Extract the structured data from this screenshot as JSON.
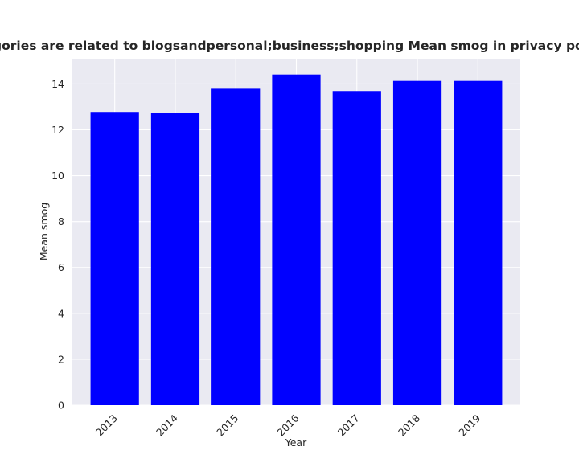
{
  "chart_data": {
    "type": "bar",
    "title": "categories are related to blogsandpersonal;business;shopping Mean smog in privacy policies",
    "xlabel": "Year",
    "ylabel": "Mean smog",
    "categories": [
      "2013",
      "2014",
      "2015",
      "2016",
      "2017",
      "2018",
      "2019"
    ],
    "values": [
      12.78,
      12.74,
      13.79,
      14.41,
      13.69,
      14.13,
      14.13
    ],
    "ylim": [
      0,
      15.1
    ],
    "yticks": [
      0,
      2,
      4,
      6,
      8,
      10,
      12,
      14
    ],
    "grid": true,
    "colors": {
      "bar": "#0000ff",
      "plot_background": "#eaeaf2",
      "grid": "#ffffff"
    }
  }
}
